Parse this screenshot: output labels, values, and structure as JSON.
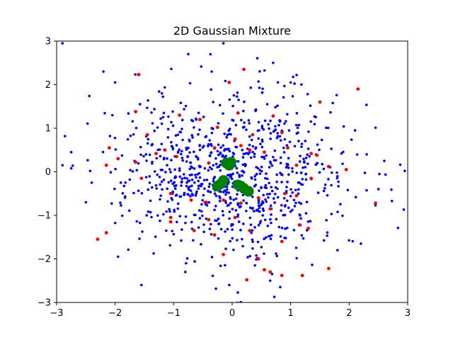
{
  "chart_data": {
    "type": "scatter",
    "title": "2D Gaussian Mixture",
    "xlabel": "",
    "ylabel": "",
    "xlim": [
      -3,
      3
    ],
    "ylim": [
      -3,
      3
    ],
    "xticks": [
      -3,
      -2,
      -1,
      0,
      1,
      2,
      3
    ],
    "yticks": [
      -3,
      -2,
      -1,
      0,
      1,
      2,
      3
    ],
    "xtick_labels": [
      "−3",
      "−2",
      "−1",
      "0",
      "1",
      "2",
      "3"
    ],
    "ytick_labels": [
      "−3",
      "−2",
      "−1",
      "0",
      "1",
      "2",
      "3"
    ],
    "grid": false,
    "colors": {
      "blue": "#0000ff",
      "red": "#ff0000",
      "green": "#008000"
    },
    "series": [
      {
        "color": "#0000ff",
        "marker": "small-dot",
        "distribution": {
          "count": 900,
          "mean": [
            0,
            0
          ],
          "std": [
            0.95,
            0.95
          ],
          "seed": 7
        },
        "points": [
          [
            -2.9,
            2.95
          ],
          [
            -0.15,
            2.95
          ],
          [
            -0.75,
            2.7
          ],
          [
            0.7,
            2.5
          ],
          [
            -2.2,
            2.3
          ],
          [
            -2.0,
            2.05
          ],
          [
            -2.75,
            0.45
          ],
          [
            -2.75,
            0.08
          ],
          [
            -2.9,
            0.15
          ],
          [
            -2.5,
            -0.7
          ],
          [
            -2.4,
            -0.25
          ],
          [
            -1.95,
            -1.95
          ],
          [
            -1.55,
            -2.6
          ],
          [
            -0.05,
            -2.6
          ],
          [
            2.95,
            0.02
          ],
          [
            2.6,
            0.25
          ],
          [
            2.2,
            -1.65
          ],
          [
            2.5,
            -0.4
          ],
          [
            2.3,
            0.4
          ],
          [
            2.1,
            0.95
          ],
          [
            1.0,
            2.05
          ],
          [
            0.6,
            1.55
          ],
          [
            -0.35,
            2.3
          ],
          [
            -1.2,
            1.8
          ],
          [
            -0.8,
            -2.3
          ],
          [
            0.65,
            -2.5
          ],
          [
            1.8,
            -1.8
          ]
        ]
      },
      {
        "color": "#ff0000",
        "marker": "dot",
        "points": [
          [
            -1.6,
            2.23
          ],
          [
            0.2,
            2.35
          ],
          [
            2.15,
            1.9
          ],
          [
            1.5,
            1.6
          ],
          [
            -0.05,
            2.05
          ],
          [
            -1.65,
            1.38
          ],
          [
            -0.9,
            1.3
          ],
          [
            -0.55,
            1.2
          ],
          [
            -0.25,
            1.02
          ],
          [
            0.1,
            1.35
          ],
          [
            0.7,
            1.28
          ],
          [
            -1.45,
            0.85
          ],
          [
            -1.15,
            0.5
          ],
          [
            -1.3,
            0.42
          ],
          [
            -2.1,
            0.55
          ],
          [
            -1.95,
            0.3
          ],
          [
            -2.15,
            0.15
          ],
          [
            -1.65,
            0.22
          ],
          [
            -0.95,
            0.35
          ],
          [
            -0.4,
            0.2
          ],
          [
            -0.3,
            0.55
          ],
          [
            0.15,
            0.6
          ],
          [
            0.3,
            0.5
          ],
          [
            0.55,
            0.45
          ],
          [
            0.95,
            0.55
          ],
          [
            1.35,
            0.42
          ],
          [
            1.45,
            0.38
          ],
          [
            1.65,
            0.12
          ],
          [
            1.1,
            0.15
          ],
          [
            0.85,
            0.9
          ],
          [
            0.35,
            0.85
          ],
          [
            0.05,
            0.75
          ],
          [
            -1.55,
            -0.15
          ],
          [
            -1.05,
            -0.5
          ],
          [
            -0.7,
            -0.65
          ],
          [
            -0.45,
            -0.7
          ],
          [
            -0.15,
            -0.65
          ],
          [
            0.15,
            -0.72
          ],
          [
            0.45,
            -0.6
          ],
          [
            0.65,
            -0.85
          ],
          [
            0.9,
            -0.5
          ],
          [
            1.1,
            -0.55
          ],
          [
            1.35,
            -0.15
          ],
          [
            -1.05,
            -1.05
          ],
          [
            -1.05,
            -1.15
          ],
          [
            -0.65,
            -1.35
          ],
          [
            -0.4,
            -1.1
          ],
          [
            -0.3,
            -1.45
          ],
          [
            0.05,
            -1.05
          ],
          [
            0.3,
            -1.35
          ],
          [
            0.85,
            -1.6
          ],
          [
            1.3,
            -1.3
          ],
          [
            1.15,
            -1.22
          ],
          [
            -0.15,
            -1.9
          ],
          [
            0.45,
            -2.0
          ],
          [
            0.55,
            -2.25
          ],
          [
            0.65,
            -2.3
          ],
          [
            0.85,
            -2.38
          ],
          [
            1.2,
            -2.38
          ],
          [
            1.65,
            -2.22
          ],
          [
            0.25,
            -2.48
          ],
          [
            -2.3,
            -1.55
          ],
          [
            -2.15,
            -1.4
          ],
          [
            2.45,
            -0.72
          ],
          [
            -0.1,
            0.15
          ],
          [
            1.95,
            0.05
          ]
        ]
      },
      {
        "color": "#008000",
        "marker": "large-dot",
        "points": [
          [
            -0.1,
            0.2
          ],
          [
            -0.05,
            0.15
          ],
          [
            -0.02,
            0.22
          ],
          [
            -0.15,
            -0.2
          ],
          [
            -0.2,
            -0.28
          ],
          [
            -0.25,
            -0.33
          ],
          [
            0.1,
            -0.3
          ],
          [
            0.15,
            -0.33
          ],
          [
            0.2,
            -0.38
          ],
          [
            0.28,
            -0.45
          ]
        ]
      }
    ]
  }
}
